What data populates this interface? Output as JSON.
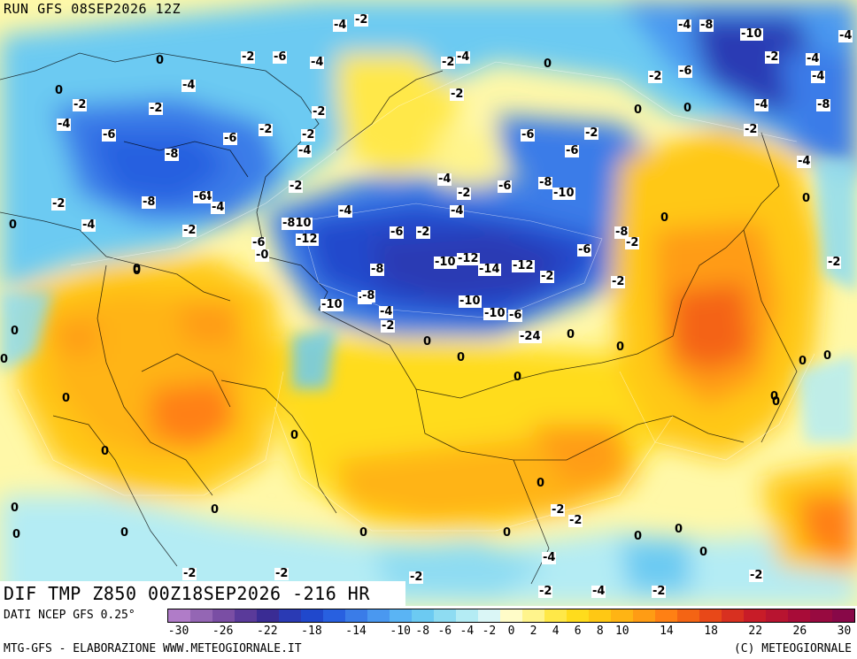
{
  "header": {
    "run": "RUN GFS 08SEP2026 12Z"
  },
  "title": {
    "text": "DIF TMP Z850 00Z18SEP2026 -216 HR"
  },
  "footer": {
    "source": "DATI NCEP GFS 0.25°",
    "credit": "MTG-GFS - ELABORAZIONE WWW.METEOGIORNALE.IT",
    "copyright": "(C) METEOGIORNALE"
  },
  "legend": {
    "colors": [
      "#b07cc8",
      "#9466b4",
      "#7a4ea4",
      "#5a3a9a",
      "#3a2c94",
      "#2a3ab4",
      "#2048cc",
      "#2860e0",
      "#3a7ce8",
      "#4a98f0",
      "#5ab4f4",
      "#6ccaf2",
      "#8edcf2",
      "#b4ecf4",
      "#daf6f6",
      "#fffcc8",
      "#fff48c",
      "#ffe848",
      "#ffdc1c",
      "#ffc814",
      "#ffb414",
      "#ff9c14",
      "#ff8014",
      "#f46414",
      "#e84818",
      "#d83020",
      "#c81c28",
      "#b81430",
      "#a80c38",
      "#980a40",
      "#880848"
    ],
    "ticks": [
      "-30",
      "-26",
      "-22",
      "-18",
      "-14",
      "-10",
      "-8",
      "-6",
      "-4",
      "-2",
      "0",
      "2",
      "4",
      "6",
      "8",
      "10",
      "14",
      "18",
      "22",
      "26",
      "30"
    ]
  },
  "contour_labels": [
    {
      "t": "-4"
    },
    {
      "t": "-2"
    },
    {
      "t": "-4"
    },
    {
      "t": "-8"
    },
    {
      "t": "-10"
    },
    {
      "t": "-4"
    },
    {
      "t": "-2"
    },
    {
      "t": "-6"
    },
    {
      "t": "-4"
    },
    {
      "t": "0"
    },
    {
      "t": "-2"
    },
    {
      "t": "-4"
    },
    {
      "t": "-2"
    },
    {
      "t": "-6"
    },
    {
      "t": "-4"
    },
    {
      "t": "0"
    },
    {
      "t": "-2"
    },
    {
      "t": "-4"
    },
    {
      "t": "-6"
    },
    {
      "t": "0"
    },
    {
      "t": "-4"
    },
    {
      "t": "-2"
    },
    {
      "t": "-8"
    },
    {
      "t": "-4"
    },
    {
      "t": "0"
    },
    {
      "t": "-2"
    },
    {
      "t": "-2"
    },
    {
      "t": "-4"
    },
    {
      "t": "-2"
    },
    {
      "t": "-6"
    },
    {
      "t": "-2"
    },
    {
      "t": "-6"
    },
    {
      "t": "-2"
    },
    {
      "t": "-4"
    },
    {
      "t": "-2"
    },
    {
      "t": "0"
    },
    {
      "t": "-8"
    },
    {
      "t": "-4"
    },
    {
      "t": "-6"
    },
    {
      "t": "-4"
    },
    {
      "t": "-2"
    },
    {
      "t": "-6"
    },
    {
      "t": "-8"
    },
    {
      "t": "-10"
    },
    {
      "t": "-2"
    },
    {
      "t": "-4"
    },
    {
      "t": "-2"
    },
    {
      "t": "-4"
    },
    {
      "t": "-6"
    },
    {
      "t": "-4"
    },
    {
      "t": "-4"
    },
    {
      "t": "-6"
    },
    {
      "t": "-2"
    },
    {
      "t": "-8"
    },
    {
      "t": "-810"
    },
    {
      "t": "-12"
    },
    {
      "t": "-6"
    },
    {
      "t": "-2"
    },
    {
      "t": "-8"
    },
    {
      "t": "-6"
    },
    {
      "t": "-10"
    },
    {
      "t": "-0"
    },
    {
      "t": "0"
    },
    {
      "t": "-8"
    },
    {
      "t": "-10"
    },
    {
      "t": "-12"
    },
    {
      "t": "-14"
    },
    {
      "t": "-12"
    },
    {
      "t": "-2"
    },
    {
      "t": "-10"
    },
    {
      "t": "-6"
    },
    {
      "t": "-10"
    },
    {
      "t": "-8"
    },
    {
      "t": "-6"
    },
    {
      "t": "-4"
    },
    {
      "t": "-2"
    },
    {
      "t": "-24"
    },
    {
      "t": "0"
    },
    {
      "t": "0"
    },
    {
      "t": "0"
    },
    {
      "t": "0"
    },
    {
      "t": "0"
    },
    {
      "t": "0"
    },
    {
      "t": "0"
    },
    {
      "t": "-2"
    },
    {
      "t": "0"
    },
    {
      "t": "0"
    },
    {
      "t": "0"
    },
    {
      "t": "0"
    },
    {
      "t": "0"
    },
    {
      "t": "-2"
    },
    {
      "t": "-2"
    },
    {
      "t": "0"
    },
    {
      "t": "0"
    },
    {
      "t": "0"
    },
    {
      "t": "0"
    },
    {
      "t": "-2"
    },
    {
      "t": "0"
    },
    {
      "t": "0"
    },
    {
      "t": "-4"
    },
    {
      "t": "0"
    },
    {
      "t": "0"
    },
    {
      "t": "-2"
    },
    {
      "t": "-2"
    },
    {
      "t": "-2"
    },
    {
      "t": "-2"
    },
    {
      "t": "-4"
    },
    {
      "t": "-2"
    },
    {
      "t": "0"
    },
    {
      "t": "0"
    },
    {
      "t": "0"
    },
    {
      "t": "-2"
    },
    {
      "t": "0"
    },
    {
      "t": "-4"
    },
    {
      "t": "-2"
    },
    {
      "t": "0"
    },
    {
      "t": "0"
    },
    {
      "t": "0"
    },
    {
      "t": "0"
    },
    {
      "t": "-2"
    },
    {
      "t": "0"
    }
  ]
}
